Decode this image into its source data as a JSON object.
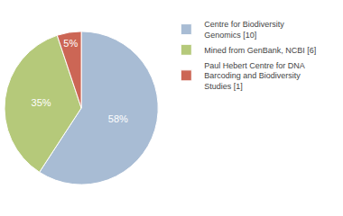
{
  "chart_data": {
    "type": "pie",
    "categories": [
      "Centre for Biodiversity\nGenomics [10]",
      "Mined from GenBank, NCBI [6]",
      "Paul Hebert Centre for DNA\nBarcoding and Biodiversity\nStudies [1]"
    ],
    "values": [
      58,
      35,
      5
    ],
    "value_labels": [
      "58%",
      "35%",
      "5%"
    ],
    "colors": [
      "#a8bcd4",
      "#b5c97a",
      "#cc6655"
    ],
    "data_labels": true,
    "legend": "right"
  }
}
